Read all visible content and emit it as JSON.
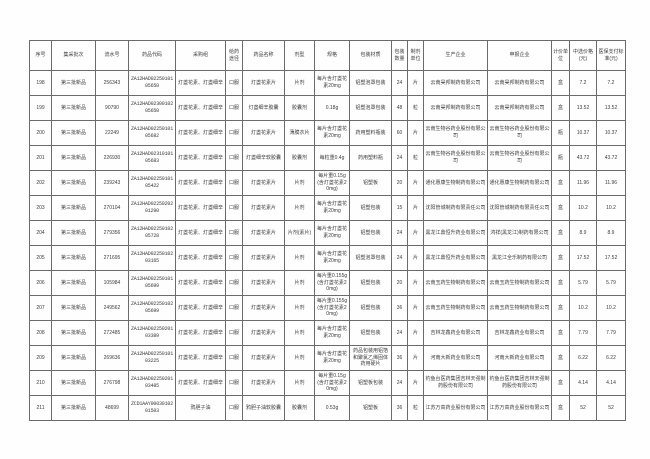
{
  "table": {
    "columns": [
      "序号",
      "集采批次",
      "流水号",
      "药品代码",
      "采购组",
      "给药途径",
      "药品名称",
      "剂型",
      "规格",
      "包装材质",
      "包装数量",
      "制剂单位",
      "生产企业",
      "申报企业",
      "计价单位",
      "中选价格(元)",
      "医保支付标准(元)"
    ],
    "rows": [
      [
        "198",
        "第三批新品",
        "256343",
        "ZA12HAD0225010105650",
        "灯盏花素、灯盏细辛",
        "口服",
        "灯盏花素片",
        "片剂",
        "每片含灯盏花素20mg",
        "铝塑泡罩包装",
        "24",
        "片",
        "云南昊邦制药有限公司",
        "云南昊邦制药有限公司",
        "盒",
        "7.2",
        "7.2"
      ],
      [
        "199",
        "第三批新品",
        "90790",
        "ZA12HAD0230010205650",
        "灯盏花素、灯盏细辛",
        "口服",
        "灯盏细辛胶囊",
        "胶囊剂",
        "0.18g",
        "铝塑泡罩包装",
        "48",
        "粒",
        "云南昊邦制药有限公司",
        "云南昊邦制药有限公司",
        "盒",
        "13.52",
        "13.52"
      ],
      [
        "200",
        "第三批新品",
        "22249",
        "ZA12HAD0225010105682",
        "灯盏花素、灯盏细辛",
        "口服",
        "灯盏花素片",
        "薄膜衣片",
        "每片含灯盏花素20mg",
        "药用塑料瓶装",
        "60",
        "片",
        "云南生物谷药业股份有限公司",
        "云南生物谷药业股份有限公司",
        "瓶",
        "10.37",
        "10.37"
      ],
      [
        "201",
        "第三批新品",
        "226930",
        "ZA12HAD0231010105683",
        "灯盏花素、灯盏细辛",
        "口服",
        "灯盏细辛软胶囊",
        "胶囊剂",
        "每粒重0.4g",
        "药用塑料瓶",
        "24",
        "粒",
        "云南生物谷药业股份有限公司",
        "云南生物谷药业股份有限公司",
        "瓶",
        "43.72",
        "43.72"
      ],
      [
        "202",
        "第三批新品",
        "239243",
        "ZA12HAD0225010105422",
        "灯盏花素、灯盏细辛",
        "口服",
        "灯盏花素片",
        "片剂",
        "每片重0.15g(含灯盏花素20mg)",
        "铝塑板",
        "20",
        "片",
        "通化惠康生物制药有限公司",
        "通化惠康生物制药有限公司",
        "盒",
        "11.96",
        "11.96"
      ],
      [
        "203",
        "第三批新品",
        "270104",
        "ZA12HAD0225020201290",
        "灯盏花素、灯盏细辛",
        "口服",
        "灯盏花素片",
        "片剂",
        "每片含灯盏花素20mg",
        "铝塑包装",
        "15",
        "片",
        "沈阳管城制药有限责任公司",
        "沈阳管城制药有限责任公司",
        "盒",
        "10.2",
        "10.2"
      ],
      [
        "204",
        "第三批新品",
        "279356",
        "ZA12HAD0225010205728",
        "灯盏花素、灯盏细辛",
        "口服",
        "灯盏花素片",
        "片剂(素片)",
        "每片含灯盏花素20mg",
        "铝塑包装",
        "24",
        "片",
        "黑龙江鼎恒升药业有限公司",
        "鸿祥(黑龙江)制药有限公司",
        "盒",
        "8.9",
        "8.9"
      ],
      [
        "205",
        "第三批新品",
        "271695",
        "ZA12HAD0225010203165",
        "灯盏花素、灯盏细辛",
        "口服",
        "灯盏花素片",
        "片剂",
        "每片含灯盏花素20mg",
        "铝塑泡罩包装",
        "24",
        "片",
        "黑龙江鼎恒升药业有限公司",
        "黑龙江全乐制药有限公司",
        "盒",
        "17.52",
        "17.52"
      ],
      [
        "206",
        "第三批新品",
        "105984",
        "ZA12HAD0225010105699",
        "灯盏花素、灯盏细辛",
        "口服",
        "灯盏花素片",
        "片剂",
        "每片重0.155g(含灯盏花素20mg)",
        "铝塑包装",
        "20",
        "片",
        "云南玉药生物制药有限公司",
        "云南玉药生物制药有限公司",
        "盒",
        "5.79",
        "5.79"
      ],
      [
        "207",
        "第三批新品",
        "249562",
        "ZA12HAD0225010205699",
        "灯盏花素、灯盏细辛",
        "口服",
        "灯盏花素片",
        "片剂",
        "每片重0.155g(含灯盏花素20mg)",
        "铝塑包装",
        "36",
        "片",
        "云南玉药生物制药有限公司",
        "云南玉药生物制药有限公司",
        "盒",
        "10.2",
        "10.2"
      ],
      [
        "208",
        "第三批新品",
        "272485",
        "ZA12HAD0225020103389",
        "灯盏花素、灯盏细辛",
        "口服",
        "灯盏花素片",
        "片剂",
        "每片含灯盏花素20mg",
        "铝塑包装",
        "24",
        "片",
        "吉林龙鑫药业有限公司",
        "吉林龙鑫药业有限公司",
        "盒",
        "7.79",
        "7.79"
      ],
      [
        "209",
        "第三批新品",
        "269636",
        "ZA12HAD0225010103225",
        "灯盏花素、灯盏细辛",
        "口服",
        "灯盏花素片",
        "片剂",
        "每片含灯盏花素20mg",
        "药品包装用铝箔和聚氯乙烯固体药用硬片",
        "36",
        "片",
        "河南大新药业有限公司",
        "河南大新药业有限公司",
        "盒",
        "6.22",
        "6.22"
      ],
      [
        "210",
        "第三批新品",
        "276798",
        "ZA12HAD0225020103485",
        "灯盏花素、灯盏细辛",
        "口服",
        "灯盏花素片",
        "片剂",
        "每片重0.15g(含灯盏花素20mg)",
        "铝塑板包装",
        "24",
        "片",
        "钓鱼台医药集团吉林天强制药股份有限公司",
        "钓鱼台医药集团吉林天强制药股份有限公司",
        "盒",
        "4.14",
        "4.14"
      ],
      [
        "211",
        "第三批新品",
        "48699",
        "ZCD1AAY0003010201503",
        "鸦胆子油",
        "口服",
        "鸦胆子油软胶囊",
        "胶囊剂",
        "0.53g",
        "铝塑板",
        "36",
        "粒",
        "江苏万高药业股份有限公司",
        "江苏万高药业股份有限公司",
        "盒",
        "52",
        "52"
      ]
    ]
  }
}
